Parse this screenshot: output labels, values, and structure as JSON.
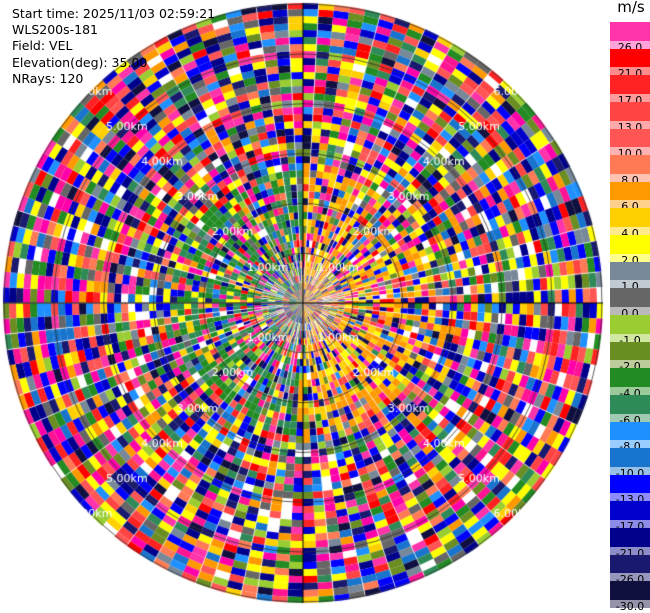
{
  "header": {
    "start_time": "Start time: 2025/11/03 02:59:21",
    "station": "WLS200s-181",
    "field": "Field: VEL",
    "elevation": "Elevation(deg): 35.00",
    "nrays": "NRays: 120"
  },
  "colorbar": {
    "unit": "m/s",
    "entries": [
      {
        "label": "26.0",
        "color": "#ff33aa"
      },
      {
        "label": "21.0",
        "color": "#ff0000"
      },
      {
        "label": "17.0",
        "color": "#ff2222"
      },
      {
        "label": "13.0",
        "color": "#ff4444"
      },
      {
        "label": "10.0",
        "color": "#ff5555"
      },
      {
        "label": "8.0",
        "color": "#ff7a55"
      },
      {
        "label": "6.0",
        "color": "#ff9900"
      },
      {
        "label": "4.0",
        "color": "#ffd000"
      },
      {
        "label": "2.0",
        "color": "#ffff00"
      },
      {
        "label": "1.0",
        "color": "#778899"
      },
      {
        "label": "0.0",
        "color": "#666666"
      },
      {
        "label": "-1.0",
        "color": "#9acd32"
      },
      {
        "label": "-2.0",
        "color": "#6b8e23"
      },
      {
        "label": "-4.0",
        "color": "#228b22"
      },
      {
        "label": "-6.0",
        "color": "#2e8b57"
      },
      {
        "label": "-8.0",
        "color": "#1e90ff"
      },
      {
        "label": "-10.0",
        "color": "#1874cd"
      },
      {
        "label": "-13.0",
        "color": "#0000ff"
      },
      {
        "label": "-17.0",
        "color": "#0000cd"
      },
      {
        "label": "-21.0",
        "color": "#00008b"
      },
      {
        "label": "-26.0",
        "color": "#191970"
      },
      {
        "label": "-30.0",
        "color": "#101040"
      }
    ]
  },
  "ppi": {
    "nrays": 120,
    "range_labels": [
      "1.00km",
      "2.00km",
      "3.00km",
      "4.00km",
      "5.00km",
      "6.00km"
    ]
  }
}
